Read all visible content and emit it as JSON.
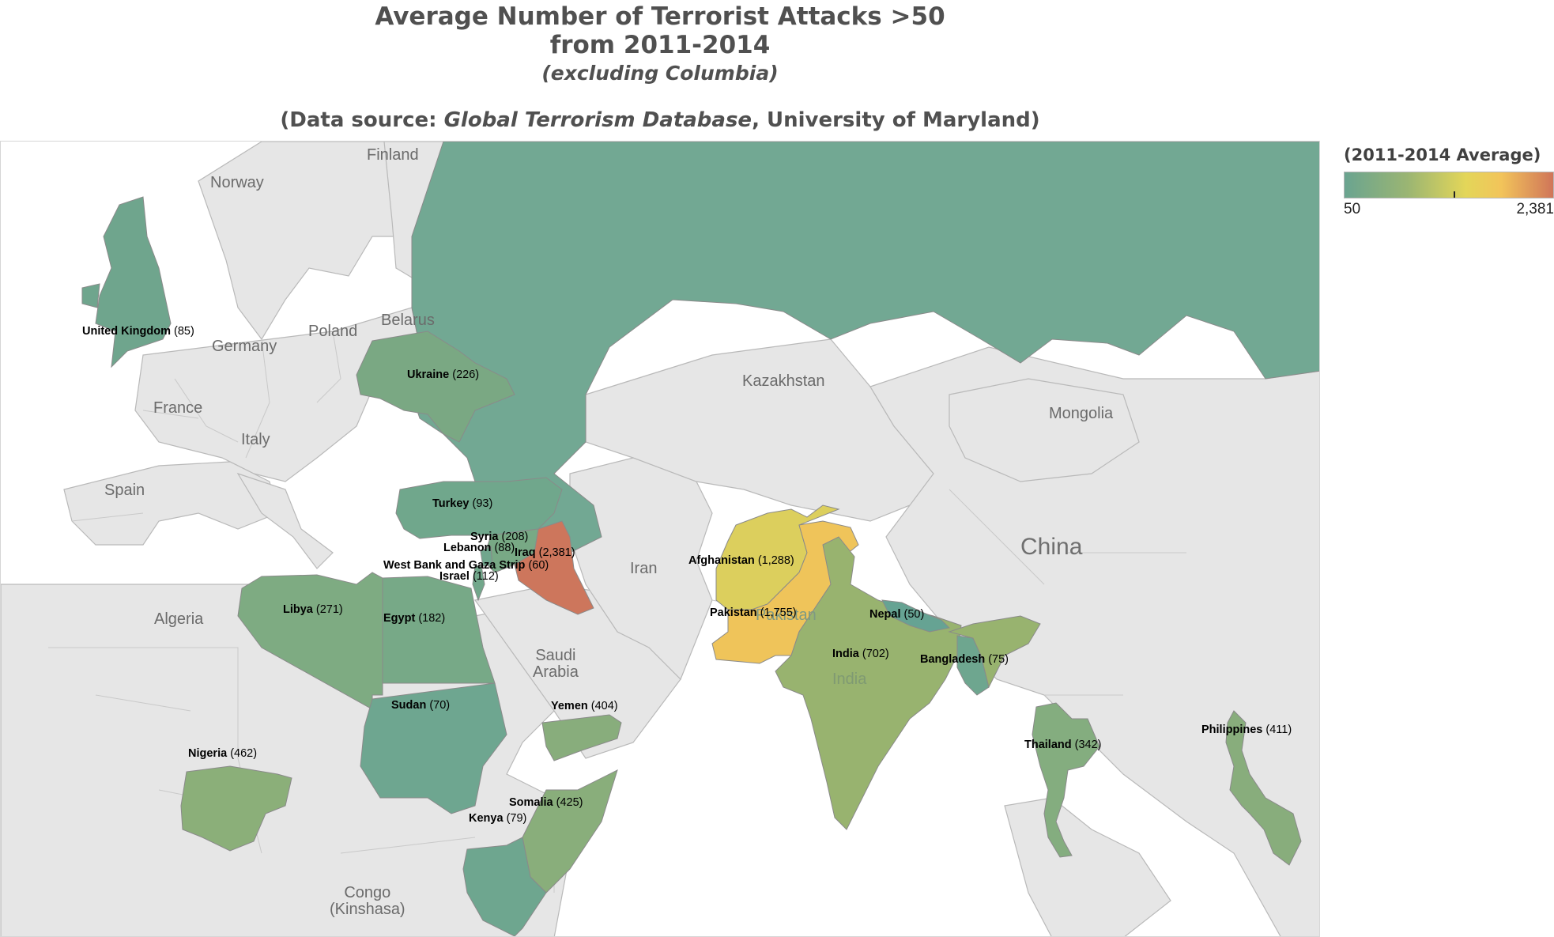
{
  "title": {
    "line1": "Average Number of Terrorist Attacks >50",
    "line2": "from 2011-2014",
    "line3": "(excluding Columbia)",
    "source_prefix": "(Data source: ",
    "source_italic": "Global Terrorism Database",
    "source_suffix": ", University of Maryland)"
  },
  "legend": {
    "title": "(2011-2014 Average)",
    "min_label": "50",
    "max_label": "2,381",
    "color_scale": [
      "#6aa490",
      "#9ab573",
      "#e3d659",
      "#f2c45a",
      "#d07559"
    ]
  },
  "colors": {
    "land": "#e6e6e6",
    "water": "#ffffff",
    "border": "#b9b9b9"
  },
  "background_labels": {
    "finland": "Finland",
    "norway": "Norway",
    "poland": "Poland",
    "belarus": "Belarus",
    "germany": "Germany",
    "france": "France",
    "italy": "Italy",
    "spain": "Spain",
    "algeria": "Algeria",
    "kazakhstan": "Kazakhstan",
    "mongolia": "Mongolia",
    "china": "China",
    "iran": "Iran",
    "saudi_arabia": "Saudi\nArabia",
    "congo": "Congo\n(Kinshasa)",
    "pakistan_faded": "Pakistan",
    "india_faded": "India"
  },
  "chart_data": {
    "type": "choropleth",
    "title": "Average Number of Terrorist Attacks >50 from 2011-2014",
    "subtitle": "(excluding Columbia)",
    "measure": "(2011-2014 Average)",
    "color_range": [
      50,
      2381
    ],
    "regions": [
      {
        "name": "United Kingdom",
        "value": 85,
        "label": "(85)",
        "color": "#6fa58d"
      },
      {
        "name": "Ukraine",
        "value": 226,
        "label": "(226)",
        "color": "#7aa883"
      },
      {
        "name": "Russia",
        "value": null,
        "label": "",
        "color": "#72a893"
      },
      {
        "name": "Turkey",
        "value": 93,
        "label": "(93)",
        "color": "#70a78c"
      },
      {
        "name": "Syria",
        "value": 208,
        "label": "(208)",
        "color": "#78a985"
      },
      {
        "name": "Lebanon",
        "value": 88,
        "label": "(88)",
        "color": "#70a68d"
      },
      {
        "name": "Iraq",
        "value": 2381,
        "label": "(2,381)",
        "color": "#cd765c"
      },
      {
        "name": "West Bank and Gaza Strip",
        "value": 60,
        "label": "(60)",
        "color": "#6da68f"
      },
      {
        "name": "Israel",
        "value": 112,
        "label": "(112)",
        "color": "#72a78b"
      },
      {
        "name": "Libya",
        "value": 271,
        "label": "(271)",
        "color": "#7eab82"
      },
      {
        "name": "Egypt",
        "value": 182,
        "label": "(182)",
        "color": "#77a987"
      },
      {
        "name": "Sudan",
        "value": 70,
        "label": "(70)",
        "color": "#6ea690"
      },
      {
        "name": "Yemen",
        "value": 404,
        "label": "(404)",
        "color": "#88ad7c"
      },
      {
        "name": "Nigeria",
        "value": 462,
        "label": "(462)",
        "color": "#8baf79"
      },
      {
        "name": "Somalia",
        "value": 425,
        "label": "(425)",
        "color": "#89ae7b"
      },
      {
        "name": "Kenya",
        "value": 79,
        "label": "(79)",
        "color": "#6ea68f"
      },
      {
        "name": "Afghanistan",
        "value": 1288,
        "label": "(1,288)",
        "color": "#dccf5d"
      },
      {
        "name": "Pakistan",
        "value": 1755,
        "label": "(1,755)",
        "color": "#efc45a"
      },
      {
        "name": "India",
        "value": 702,
        "label": "(702)",
        "color": "#98b36f"
      },
      {
        "name": "Nepal",
        "value": 50,
        "label": "(50)",
        "color": "#66a393"
      },
      {
        "name": "Bangladesh",
        "value": 75,
        "label": "(75)",
        "color": "#6ea68f"
      },
      {
        "name": "Thailand",
        "value": 342,
        "label": "(342)",
        "color": "#84ad7f"
      },
      {
        "name": "Philippines",
        "value": 411,
        "label": "(411)",
        "color": "#88ad7c"
      }
    ]
  }
}
